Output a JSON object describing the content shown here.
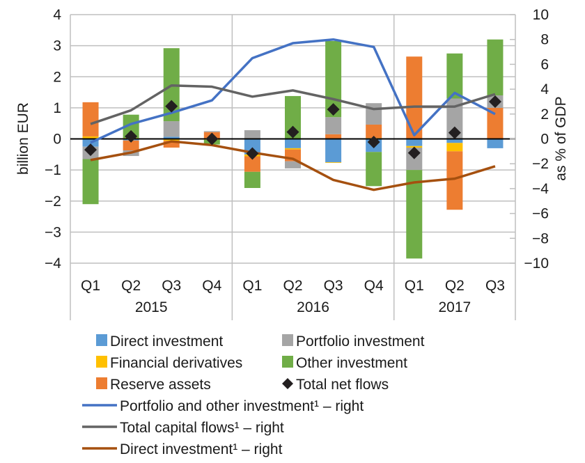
{
  "chart_data": {
    "type": "bar",
    "stacked": true,
    "title": "",
    "ylabel": "billion  EUR",
    "y2label": "as % of GDP",
    "ylim": [
      -4,
      4
    ],
    "y2lim": [
      -10,
      10
    ],
    "yticks": [
      "4",
      "3",
      "2",
      "1",
      "0",
      "−1",
      "−2",
      "−3",
      "−4"
    ],
    "y2ticks": [
      "10",
      "8",
      "6",
      "4",
      "2",
      "0",
      "−2",
      "−4",
      "−6",
      "−8",
      "−10"
    ],
    "grid": true,
    "categories": [
      "Q1",
      "Q2",
      "Q3",
      "Q4",
      "Q1",
      "Q2",
      "Q3",
      "Q4",
      "Q1",
      "Q2",
      "Q3"
    ],
    "groups": [
      {
        "label": "2015",
        "count": 4
      },
      {
        "label": "2016",
        "count": 4
      },
      {
        "label": "2017",
        "count": 3
      }
    ],
    "series": [
      {
        "name": "Direct investment",
        "kind": "bar",
        "color": "#5b9bd5",
        "values": [
          -0.25,
          -0.05,
          0.07,
          0.0,
          -0.5,
          -0.3,
          -0.75,
          -0.42,
          -0.23,
          -0.13,
          -0.3
        ]
      },
      {
        "name": "Financial derivatives",
        "kind": "bar",
        "color": "#ffc000",
        "values": [
          0.08,
          0.03,
          -0.06,
          -0.03,
          -0.06,
          -0.04,
          -0.02,
          0.03,
          -0.05,
          -0.27,
          0.0
        ]
      },
      {
        "name": "Reserve assets",
        "kind": "bar",
        "color": "#ed7d31",
        "values": [
          1.1,
          -0.32,
          -0.22,
          0.22,
          -0.5,
          -0.38,
          0.15,
          0.43,
          2.65,
          -1.88,
          1.0
        ]
      },
      {
        "name": "Portfolio investment",
        "kind": "bar",
        "color": "#a5a5a5",
        "values": [
          -0.4,
          -0.18,
          0.5,
          0.03,
          0.28,
          -0.23,
          0.55,
          0.69,
          -0.72,
          1.3,
          0.4
        ]
      },
      {
        "name": "Other investment",
        "kind": "bar",
        "color": "#70ad47",
        "values": [
          -1.45,
          0.75,
          2.35,
          -0.15,
          -0.52,
          1.38,
          2.45,
          -1.1,
          -2.85,
          1.45,
          1.8
        ]
      },
      {
        "name": "Total net flows",
        "kind": "marker",
        "color": "#231f20",
        "values": [
          -0.35,
          0.08,
          1.05,
          0.0,
          -0.47,
          0.22,
          0.95,
          -0.1,
          -0.45,
          0.2,
          1.2
        ]
      },
      {
        "name": "Portfolio and other investment¹ – right",
        "kind": "line",
        "axis": "right",
        "color": "#4472c4",
        "values": [
          -0.3,
          1.2,
          2.1,
          3.1,
          6.5,
          7.7,
          8.0,
          7.4,
          0.3,
          3.7,
          2.0
        ]
      },
      {
        "name": "Total capital flows¹ – right",
        "kind": "line",
        "axis": "right",
        "color": "#636363",
        "values": [
          1.2,
          2.3,
          4.3,
          4.2,
          3.4,
          3.9,
          3.2,
          2.4,
          2.6,
          2.6,
          3.6
        ]
      },
      {
        "name": "Direct investment¹ – right",
        "kind": "line",
        "axis": "right",
        "color": "#a5500f",
        "values": [
          -1.7,
          -1.1,
          -0.2,
          -0.5,
          -1.1,
          -1.6,
          -3.3,
          -4.1,
          -3.5,
          -3.2,
          -2.2
        ]
      }
    ],
    "legend": {
      "placement": "bottom",
      "items": [
        {
          "label": "Direct investment",
          "symbol": "square",
          "color": "#5b9bd5"
        },
        {
          "label": "Portfolio investment",
          "symbol": "square",
          "color": "#a5a5a5"
        },
        {
          "label": "Financial derivatives",
          "symbol": "square",
          "color": "#ffc000"
        },
        {
          "label": "Other investment",
          "symbol": "square",
          "color": "#70ad47"
        },
        {
          "label": "Reserve assets",
          "symbol": "square",
          "color": "#ed7d31"
        },
        {
          "label": "Total net flows",
          "symbol": "diamond",
          "color": "#231f20"
        },
        {
          "label": "Portfolio and other investment¹ – right",
          "symbol": "line",
          "color": "#4472c4"
        },
        {
          "label": "Total capital flows¹ – right",
          "symbol": "line",
          "color": "#636363"
        },
        {
          "label": "Direct investment¹ – right",
          "symbol": "line",
          "color": "#a5500f"
        }
      ]
    }
  }
}
